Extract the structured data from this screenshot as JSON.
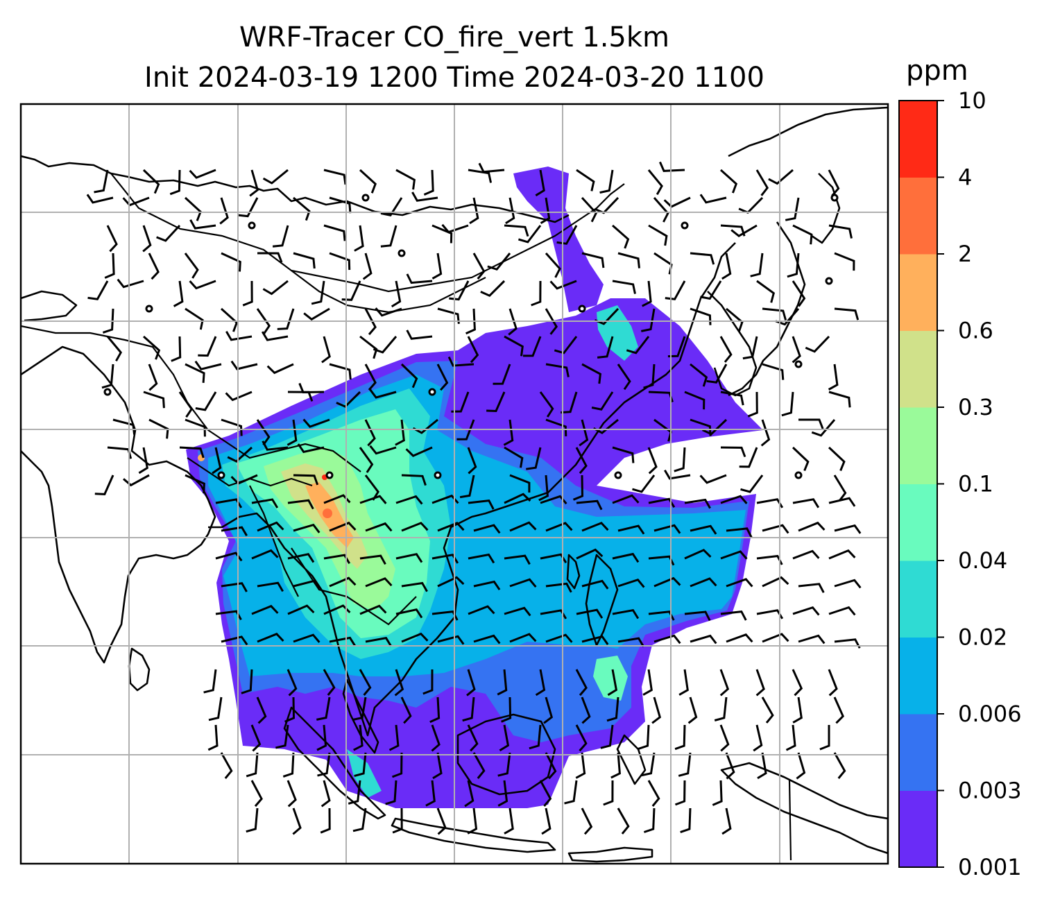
{
  "chart_data": {
    "type": "heatmap",
    "title_line1": "WRF-Tracer CO_fire_vert 1.5km",
    "title_line2": "Init 2024-03-19 1200 Time 2024-03-20 1100",
    "xlabel": "",
    "ylabel": "",
    "grid": true,
    "colorbar": {
      "unit": "ppm",
      "levels": [
        "0.001",
        "0.003",
        "0.006",
        "0.02",
        "0.04",
        "0.1",
        "0.3",
        "0.6",
        "2",
        "4",
        "10"
      ],
      "colors": [
        "#6a2cf7",
        "#3573f2",
        "#07b1e9",
        "#2fdbd3",
        "#69fbbe",
        "#9afa9a",
        "#d0e18a",
        "#ffb05c",
        "#ff6f3b",
        "#ff2a16"
      ]
    },
    "overlays": [
      "coastlines",
      "country-borders",
      "wind-barbs"
    ]
  }
}
